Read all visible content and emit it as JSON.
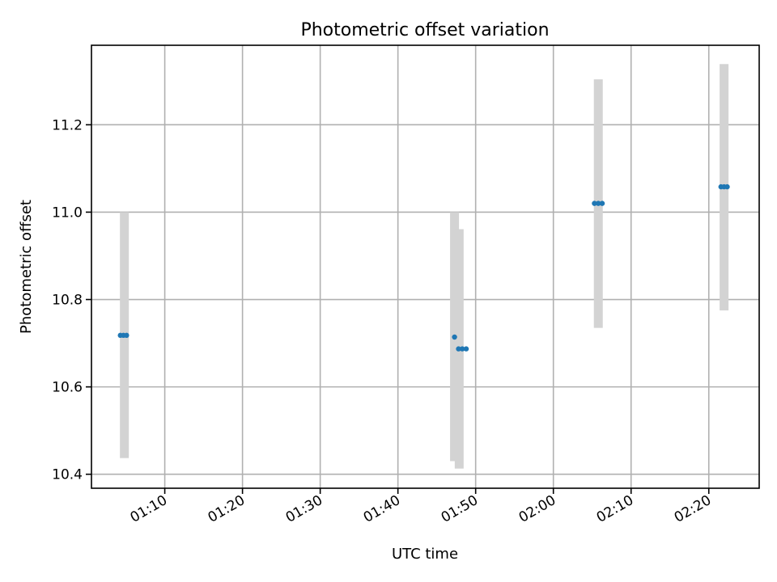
{
  "chart_data": {
    "type": "scatter",
    "title": "Photometric offset variation",
    "xlabel": "UTC time",
    "ylabel": "Photometric offset",
    "xlim": [
      "01:00:34",
      "02:26:29"
    ],
    "ylim": [
      10.368,
      11.382
    ],
    "grid": true,
    "x_ticks": [
      "01:10",
      "01:20",
      "01:30",
      "01:40",
      "01:50",
      "02:00",
      "02:10",
      "02:20"
    ],
    "y_ticks": [
      "10.4",
      "10.6",
      "10.8",
      "11.0",
      "11.2"
    ],
    "colors": {
      "points": "#1f77b4",
      "error_bars": "#d3d3d3"
    },
    "error_bars": [
      {
        "x": "01:04:48",
        "low": 10.437,
        "high": 11.0
      },
      {
        "x": "01:47:17",
        "low": 10.43,
        "high": 11.0
      },
      {
        "x": "01:47:53",
        "low": 10.413,
        "high": 10.961
      },
      {
        "x": "02:05:47",
        "low": 10.735,
        "high": 11.304
      },
      {
        "x": "02:21:58",
        "low": 10.775,
        "high": 11.339
      }
    ],
    "points": [
      {
        "x": "01:04:17",
        "y": 10.718
      },
      {
        "x": "01:04:41",
        "y": 10.718
      },
      {
        "x": "01:05:05",
        "y": 10.718
      },
      {
        "x": "01:47:17",
        "y": 10.714
      },
      {
        "x": "01:47:48",
        "y": 10.687
      },
      {
        "x": "01:48:17",
        "y": 10.687
      },
      {
        "x": "01:48:47",
        "y": 10.687
      },
      {
        "x": "02:05:17",
        "y": 11.02
      },
      {
        "x": "02:05:47",
        "y": 11.02
      },
      {
        "x": "02:06:17",
        "y": 11.02
      },
      {
        "x": "02:21:34",
        "y": 11.058
      },
      {
        "x": "02:21:58",
        "y": 11.058
      },
      {
        "x": "02:22:22",
        "y": 11.058
      }
    ]
  }
}
